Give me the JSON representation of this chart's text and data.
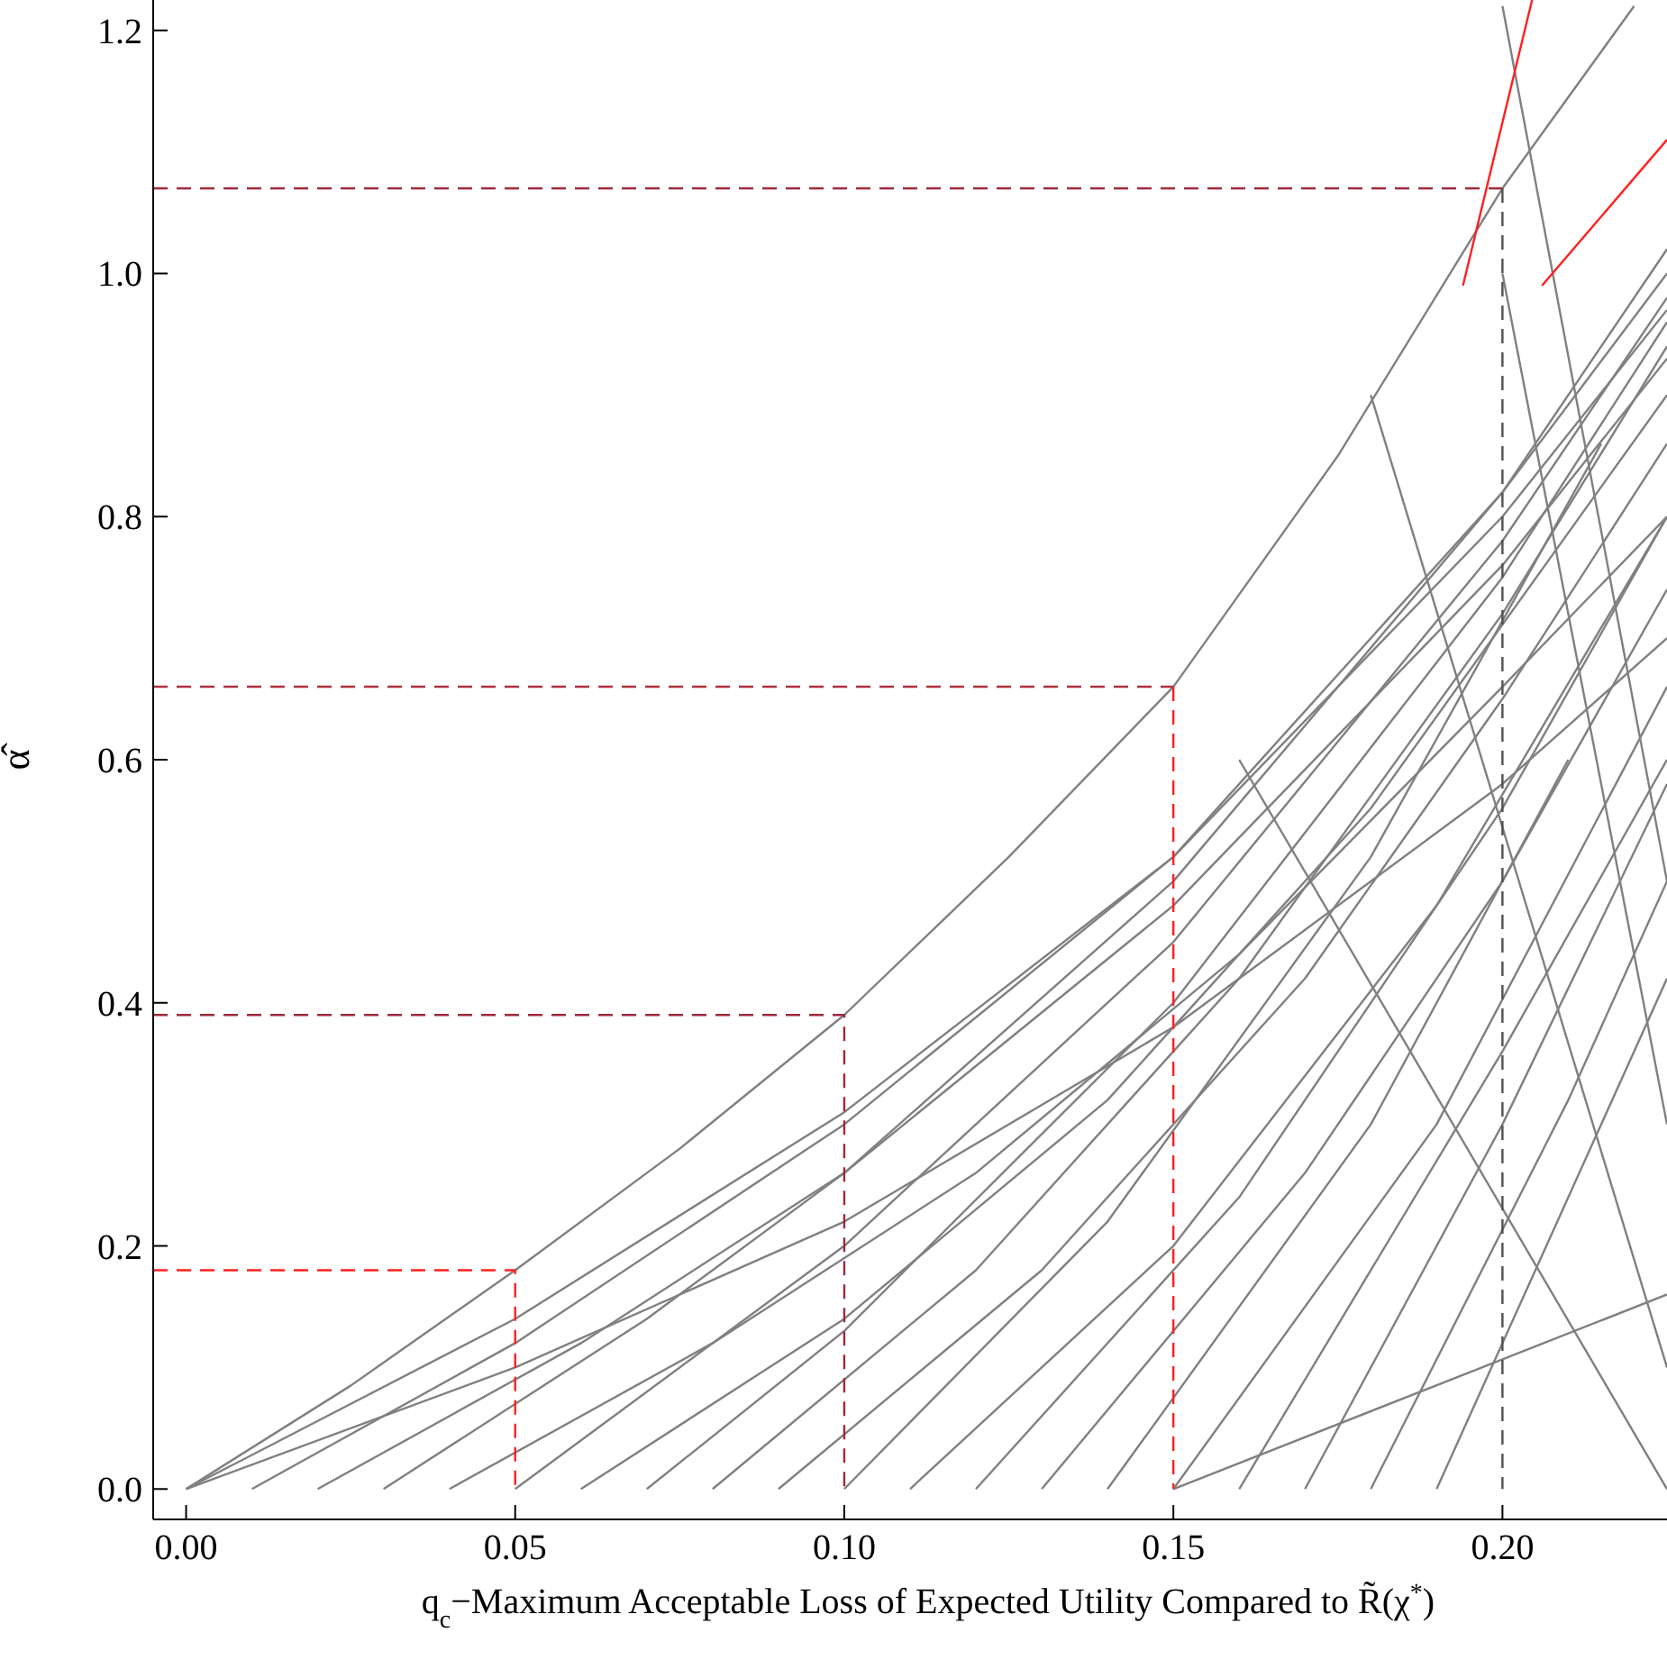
{
  "chart_data": {
    "type": "line",
    "xlabel": "q$_{c}$−Maximum Acceptable Loss of Expected Utility Compared to R̃(χ$^{*}$)",
    "ylabel": "α̂",
    "xlim": [
      -0.005,
      0.225
    ],
    "ylim": [
      -0.025,
      1.225
    ],
    "xticks": [
      {
        "value": 0,
        "label": "0.00"
      },
      {
        "value": 0.05,
        "label": "0.05"
      },
      {
        "value": 0.1,
        "label": "0.10"
      },
      {
        "value": 0.15,
        "label": "0.15"
      },
      {
        "value": 0.2,
        "label": "0.20"
      }
    ],
    "yticks": [
      {
        "value": 0,
        "label": "0.0"
      },
      {
        "value": 0.2,
        "label": "0.2"
      },
      {
        "value": 0.4,
        "label": "0.4"
      },
      {
        "value": 0.6,
        "label": "0.6"
      },
      {
        "value": 0.8,
        "label": "0.8"
      },
      {
        "value": 1,
        "label": "1.0"
      },
      {
        "value": 1.2,
        "label": "1.2"
      }
    ],
    "grid": false,
    "marker": "none",
    "line_style": "solid",
    "series": [
      {
        "color": "#808080",
        "x": [
          0,
          0.025,
          0.05,
          0.075,
          0.1,
          0.125,
          0.15,
          0.175,
          0.2,
          0.22
        ],
        "values": [
          0,
          0.085,
          0.18,
          0.28,
          0.39,
          0.52,
          0.66,
          0.85,
          1.07,
          1.22
        ]
      },
      {
        "color": "#808080",
        "x": [
          0,
          0.05,
          0.1,
          0.15,
          0.2,
          0.225
        ],
        "values": [
          0,
          0.14,
          0.31,
          0.52,
          0.8,
          0.97
        ]
      },
      {
        "color": "#808080",
        "x": [
          0,
          0.05,
          0.1,
          0.15,
          0.2,
          0.225
        ],
        "values": [
          0,
          0.1,
          0.22,
          0.38,
          0.58,
          0.7
        ]
      },
      {
        "color": "#808080",
        "x": [
          0.01,
          0.05,
          0.1,
          0.15,
          0.2,
          0.225
        ],
        "values": [
          0,
          0.12,
          0.3,
          0.52,
          0.82,
          1
        ]
      },
      {
        "color": "#808080",
        "x": [
          0.02,
          0.06,
          0.1,
          0.15,
          0.2,
          0.225
        ],
        "values": [
          0,
          0.12,
          0.26,
          0.48,
          0.76,
          0.93
        ]
      },
      {
        "color": "#808080",
        "x": [
          0.03,
          0.07,
          0.1,
          0.15,
          0.2,
          0.225
        ],
        "values": [
          0,
          0.14,
          0.26,
          0.5,
          0.82,
          1.02
        ]
      },
      {
        "color": "#808080",
        "x": [
          0.04,
          0.08,
          0.12,
          0.16,
          0.2,
          0.225
        ],
        "values": [
          0,
          0.12,
          0.26,
          0.44,
          0.66,
          0.8
        ]
      },
      {
        "color": "#808080",
        "x": [
          0.05,
          0.1,
          0.15,
          0.2,
          0.225
        ],
        "values": [
          0,
          0.2,
          0.45,
          0.78,
          0.98
        ]
      },
      {
        "color": "#808080",
        "x": [
          0.06,
          0.1,
          0.14,
          0.18,
          0.225
        ],
        "values": [
          0,
          0.14,
          0.32,
          0.56,
          0.9
        ]
      },
      {
        "color": "#808080",
        "x": [
          0.07,
          0.1,
          0.15,
          0.2,
          0.225
        ],
        "values": [
          0,
          0.13,
          0.4,
          0.75,
          0.96
        ]
      },
      {
        "color": "#808080",
        "x": [
          0.08,
          0.12,
          0.16,
          0.2,
          0.225
        ],
        "values": [
          0,
          0.18,
          0.42,
          0.72,
          0.94
        ]
      },
      {
        "color": "#808080",
        "x": [
          0.09,
          0.13,
          0.17,
          0.2,
          0.225
        ],
        "values": [
          0,
          0.18,
          0.42,
          0.65,
          0.86
        ]
      },
      {
        "color": "#808080",
        "x": [
          0.1,
          0.14,
          0.18,
          0.215
        ],
        "values": [
          0,
          0.22,
          0.52,
          0.86
        ]
      },
      {
        "color": "#808080",
        "x": [
          0.11,
          0.15,
          0.19,
          0.225
        ],
        "values": [
          0,
          0.2,
          0.48,
          0.8
        ]
      },
      {
        "color": "#808080",
        "x": [
          0.12,
          0.16,
          0.2,
          0.225
        ],
        "values": [
          0,
          0.24,
          0.56,
          0.8
        ]
      },
      {
        "color": "#808080",
        "x": [
          0.13,
          0.17,
          0.2,
          0.225
        ],
        "values": [
          0,
          0.26,
          0.5,
          0.74
        ]
      },
      {
        "color": "#808080",
        "x": [
          0.14,
          0.18,
          0.21
        ],
        "values": [
          0,
          0.3,
          0.6
        ]
      },
      {
        "color": "#808080",
        "x": [
          0.15,
          0.19,
          0.225
        ],
        "values": [
          0,
          0.3,
          0.66
        ]
      },
      {
        "color": "#808080",
        "x": [
          0.16,
          0.2,
          0.225
        ],
        "values": [
          0,
          0.36,
          0.6
        ]
      },
      {
        "color": "#808080",
        "x": [
          0.17,
          0.2,
          0.225
        ],
        "values": [
          0,
          0.3,
          0.58
        ]
      },
      {
        "color": "#808080",
        "x": [
          0.18,
          0.21,
          0.225
        ],
        "values": [
          0,
          0.32,
          0.5
        ]
      },
      {
        "color": "#808080",
        "x": [
          0.19,
          0.215,
          0.225
        ],
        "values": [
          0,
          0.3,
          0.42
        ]
      },
      {
        "color": "#808080",
        "x": [
          0.16,
          0.225
        ],
        "values": [
          0.6,
          0
        ]
      },
      {
        "color": "#808080",
        "x": [
          0.18,
          0.225
        ],
        "values": [
          0.9,
          0.1
        ]
      },
      {
        "color": "#808080",
        "x": [
          0.2,
          0.225
        ],
        "values": [
          1,
          0.3
        ]
      },
      {
        "color": "#808080",
        "x": [
          0.2,
          0.225
        ],
        "values": [
          1.22,
          0.5
        ]
      },
      {
        "color": "#808080",
        "x": [
          0.15,
          0.225
        ],
        "values": [
          0,
          0.16
        ]
      },
      {
        "color": "#ff2020",
        "x": [
          0.194,
          0.2045
        ],
        "values": [
          0.99,
          1.225
        ]
      },
      {
        "color": "#ff2020",
        "x": [
          0.206,
          0.225
        ],
        "values": [
          0.99,
          1.11
        ]
      },
      {
        "color": "#ff2020",
        "line_style": "dashed",
        "x": [
          -0.005,
          0.05,
          0.05
        ],
        "values": [
          0.18,
          0.18,
          0
        ]
      },
      {
        "color": "#a0283c",
        "line_style": "dashed",
        "x": [
          -0.005,
          0.1,
          0.1
        ],
        "values": [
          0.39,
          0.39,
          0
        ]
      },
      {
        "color": "#b03040",
        "line_style": "dashed",
        "x": [
          -0.005,
          0.15
        ],
        "values": [
          0.66,
          0.66
        ]
      },
      {
        "color": "#ff2020",
        "line_style": "dashed",
        "x": [
          0.15,
          0.15
        ],
        "values": [
          0.66,
          0
        ]
      },
      {
        "color": "#a0283c",
        "line_style": "dashed",
        "x": [
          -0.005,
          0.2
        ],
        "values": [
          1.07,
          1.07
        ]
      },
      {
        "color": "#505050",
        "line_style": "dashed",
        "x": [
          0.2,
          0.2
        ],
        "values": [
          1.07,
          0
        ]
      }
    ]
  }
}
